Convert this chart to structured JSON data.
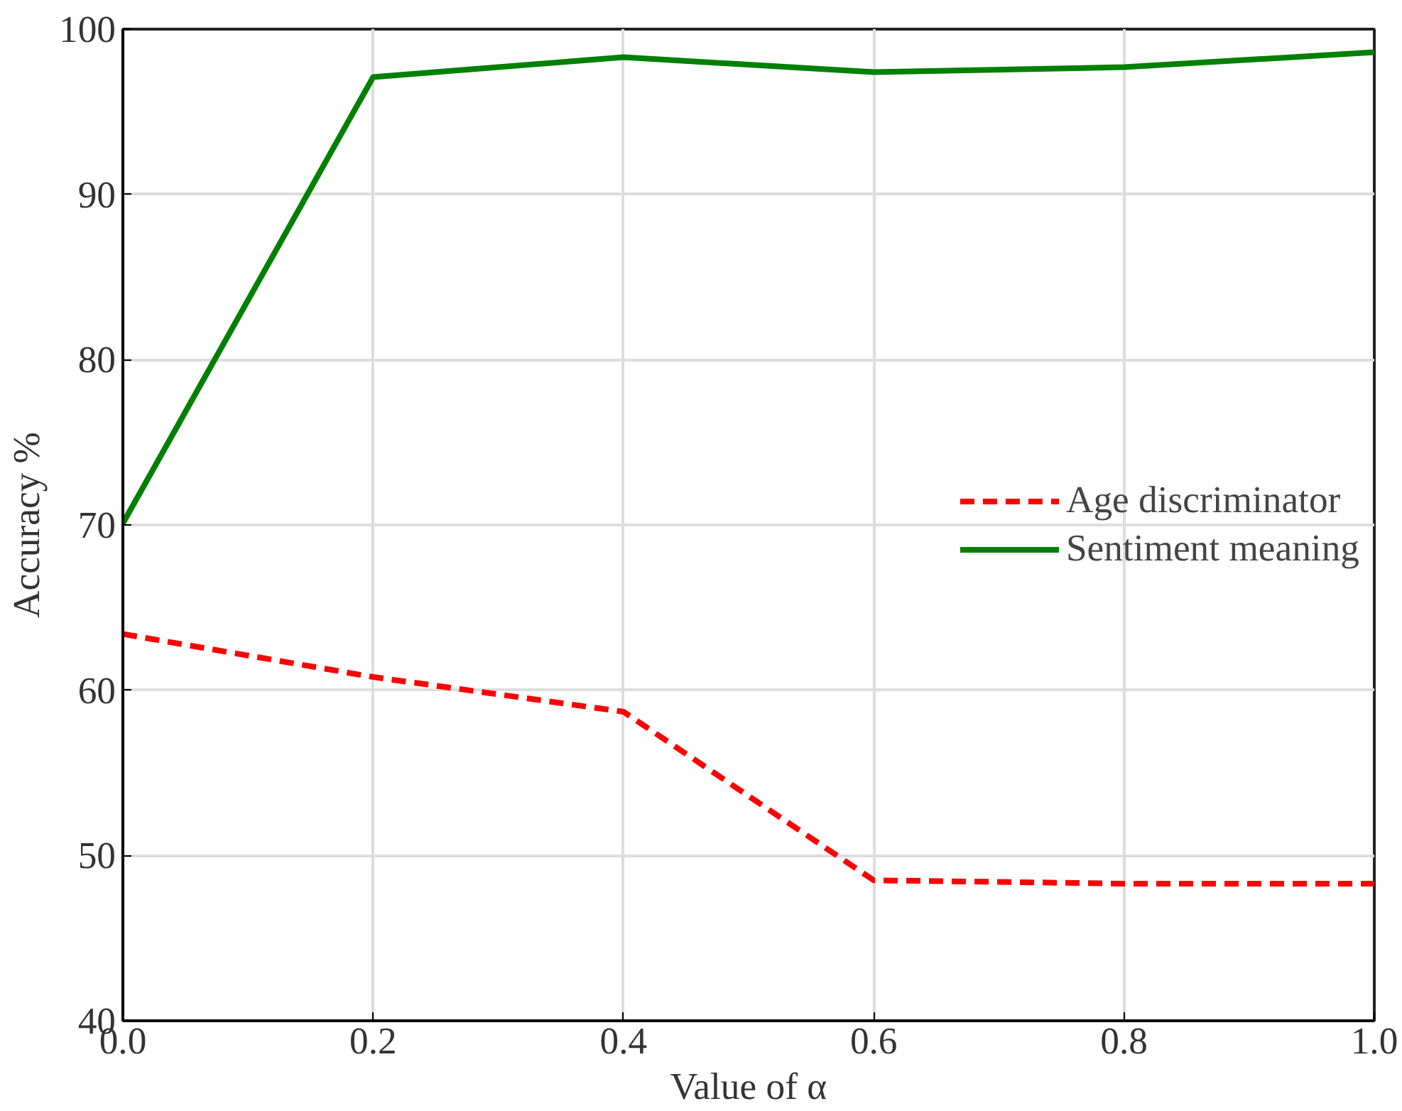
{
  "chart_data": {
    "type": "line",
    "xlabel": "Value of α",
    "ylabel": "Accuracy %",
    "x": [
      0,
      0.2,
      0.4,
      0.6,
      0.8,
      1.0
    ],
    "series": [
      {
        "name": "Age discriminator",
        "color": "#ff0000",
        "line_style": "dashed",
        "values": [
          63.4,
          60.8,
          58.7,
          48.5,
          48.3,
          48.3
        ]
      },
      {
        "name": "Sentiment meaning",
        "color": "#008000",
        "line_style": "solid",
        "values": [
          70.1,
          97.1,
          98.3,
          97.4,
          97.7,
          98.6
        ]
      }
    ],
    "xlim": [
      0,
      1
    ],
    "ylim": [
      40,
      100
    ],
    "xticks": [
      {
        "value": 0,
        "label": "0.0"
      },
      0.2,
      0.4,
      0.6,
      0.8,
      {
        "value": 1,
        "label": "1.0"
      }
    ],
    "yticks": [
      40,
      50,
      60,
      70,
      80,
      90,
      100
    ],
    "grid": true,
    "legend": "right"
  }
}
